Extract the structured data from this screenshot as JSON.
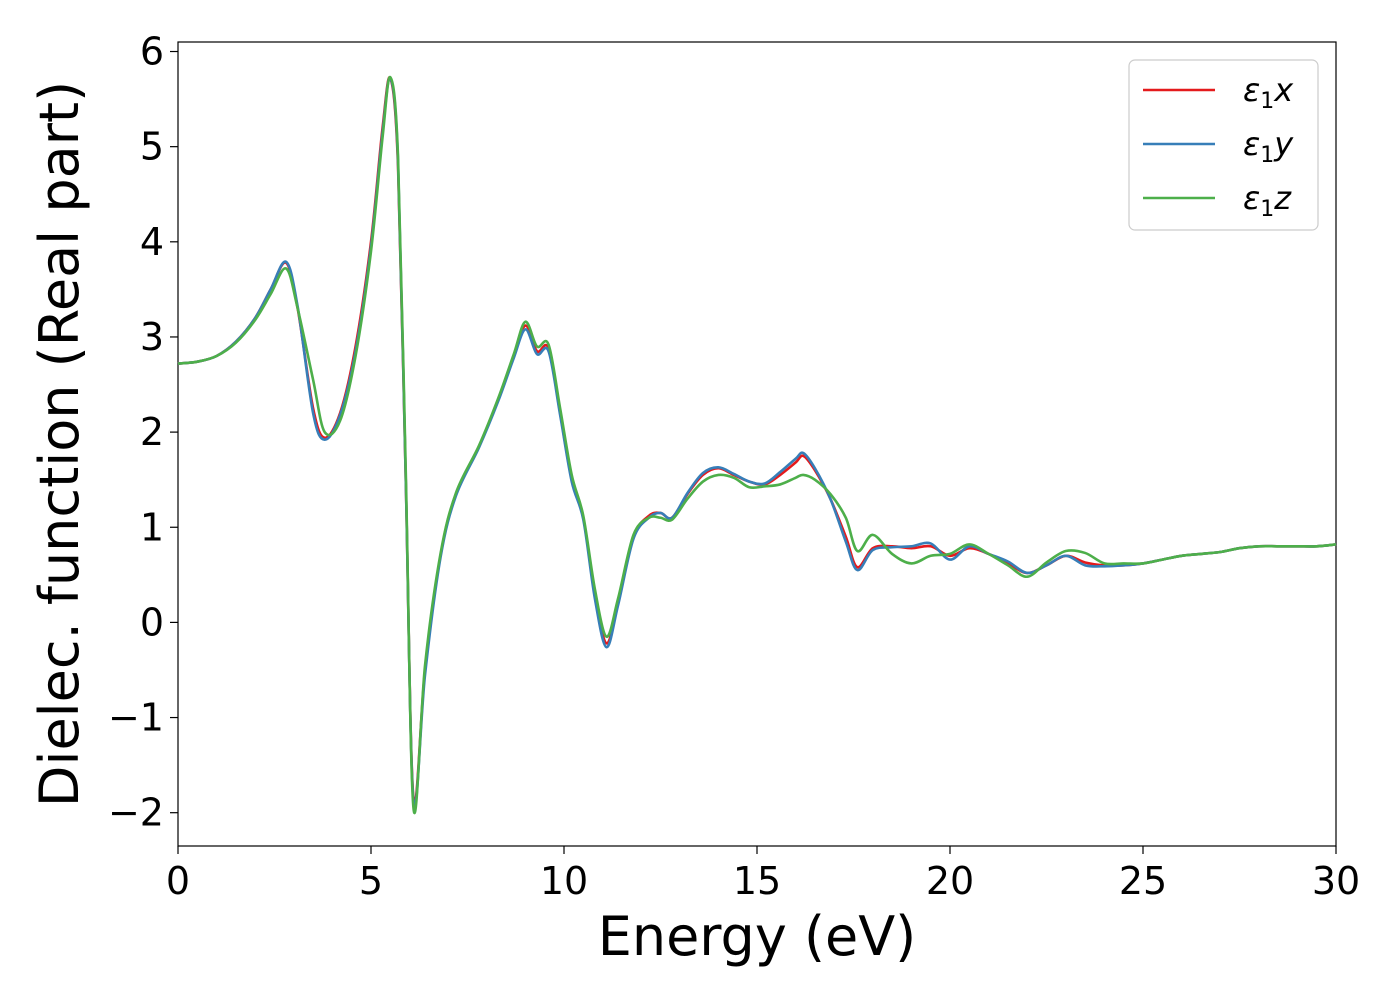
{
  "chart_data": {
    "type": "line",
    "title": "",
    "xlabel": "Energy (eV)",
    "ylabel": "Dielec. function (Real part)",
    "xlim": [
      0,
      30
    ],
    "ylim": [
      -2.35,
      6.1
    ],
    "xticks": [
      0,
      5,
      10,
      15,
      20,
      25,
      30
    ],
    "yticks": [
      -2,
      -1,
      0,
      1,
      2,
      3,
      4,
      5,
      6
    ],
    "xtick_labels": [
      "0",
      "5",
      "10",
      "15",
      "20",
      "25",
      "30"
    ],
    "ytick_labels": [
      "−2",
      "−1",
      "0",
      "1",
      "2",
      "3",
      "4",
      "5",
      "6"
    ],
    "grid": false,
    "legend_position": "top-right",
    "series": [
      {
        "name": "ε1x",
        "label_main": "ε",
        "label_sub": "1",
        "label_axis": "x",
        "color": "#e41a1c",
        "x": [
          0,
          0.5,
          1.0,
          1.5,
          2.0,
          2.4,
          2.8,
          3.1,
          3.5,
          3.8,
          4.2,
          4.6,
          5.0,
          5.3,
          5.5,
          5.7,
          5.9,
          6.1,
          6.4,
          6.8,
          7.2,
          7.8,
          8.3,
          8.7,
          9.0,
          9.3,
          9.6,
          9.9,
          10.2,
          10.5,
          10.8,
          11.1,
          11.4,
          11.8,
          12.2,
          12.5,
          12.8,
          13.2,
          13.6,
          14.0,
          14.4,
          14.8,
          15.2,
          15.6,
          16.0,
          16.2,
          16.5,
          16.9,
          17.3,
          17.6,
          18.0,
          18.5,
          19.0,
          19.5,
          20.0,
          20.5,
          21.0,
          21.5,
          22.0,
          22.5,
          23.0,
          23.5,
          24.0,
          24.5,
          25.0,
          25.5,
          26.0,
          26.5,
          27.0,
          27.5,
          28.0,
          28.5,
          29.0,
          29.5,
          30.0
        ],
        "values": [
          2.72,
          2.74,
          2.8,
          2.95,
          3.2,
          3.5,
          3.78,
          3.3,
          2.25,
          1.94,
          2.2,
          2.9,
          4.0,
          5.2,
          5.72,
          4.8,
          1.5,
          -1.85,
          -0.5,
          0.7,
          1.35,
          1.85,
          2.35,
          2.8,
          3.12,
          2.85,
          2.88,
          2.2,
          1.5,
          1.1,
          0.3,
          -0.22,
          0.2,
          0.9,
          1.12,
          1.15,
          1.1,
          1.35,
          1.55,
          1.62,
          1.55,
          1.48,
          1.45,
          1.55,
          1.68,
          1.75,
          1.6,
          1.3,
          0.9,
          0.58,
          0.78,
          0.8,
          0.78,
          0.8,
          0.7,
          0.78,
          0.72,
          0.62,
          0.52,
          0.6,
          0.7,
          0.63,
          0.6,
          0.6,
          0.62,
          0.66,
          0.7,
          0.72,
          0.74,
          0.78,
          0.8,
          0.8,
          0.8,
          0.8,
          0.82
        ]
      },
      {
        "name": "ε1y",
        "label_main": "ε",
        "label_sub": "1",
        "label_axis": "y",
        "color": "#377eb8",
        "x": [
          0,
          0.5,
          1.0,
          1.5,
          2.0,
          2.4,
          2.8,
          3.1,
          3.5,
          3.8,
          4.2,
          4.6,
          5.0,
          5.3,
          5.5,
          5.7,
          5.9,
          6.1,
          6.4,
          6.8,
          7.2,
          7.8,
          8.3,
          8.7,
          9.0,
          9.3,
          9.6,
          9.9,
          10.2,
          10.5,
          10.8,
          11.1,
          11.4,
          11.8,
          12.2,
          12.5,
          12.8,
          13.2,
          13.6,
          14.0,
          14.4,
          14.8,
          15.2,
          15.6,
          16.0,
          16.2,
          16.5,
          16.9,
          17.3,
          17.6,
          18.0,
          18.5,
          19.0,
          19.5,
          20.0,
          20.5,
          21.0,
          21.5,
          22.0,
          22.5,
          23.0,
          23.5,
          24.0,
          24.5,
          25.0,
          25.5,
          26.0,
          26.5,
          27.0,
          27.5,
          28.0,
          28.5,
          29.0,
          29.5,
          30.0
        ],
        "values": [
          2.72,
          2.74,
          2.8,
          2.95,
          3.2,
          3.5,
          3.79,
          3.32,
          2.2,
          1.92,
          2.18,
          2.85,
          3.95,
          5.15,
          5.72,
          4.85,
          1.5,
          -1.88,
          -0.55,
          0.68,
          1.33,
          1.84,
          2.33,
          2.78,
          3.08,
          2.82,
          2.85,
          2.18,
          1.48,
          1.08,
          0.25,
          -0.26,
          0.18,
          0.88,
          1.1,
          1.15,
          1.1,
          1.36,
          1.57,
          1.63,
          1.56,
          1.48,
          1.46,
          1.58,
          1.72,
          1.78,
          1.62,
          1.3,
          0.85,
          0.55,
          0.76,
          0.79,
          0.8,
          0.83,
          0.66,
          0.8,
          0.72,
          0.64,
          0.52,
          0.6,
          0.7,
          0.6,
          0.59,
          0.6,
          0.62,
          0.66,
          0.7,
          0.72,
          0.74,
          0.78,
          0.8,
          0.8,
          0.8,
          0.8,
          0.82
        ]
      },
      {
        "name": "ε1z",
        "label_main": "ε",
        "label_sub": "1",
        "label_axis": "z",
        "color": "#4daf4a",
        "x": [
          0,
          0.5,
          1.0,
          1.5,
          2.0,
          2.4,
          2.8,
          3.1,
          3.5,
          3.8,
          4.2,
          4.6,
          5.0,
          5.3,
          5.5,
          5.7,
          5.9,
          6.1,
          6.4,
          6.8,
          7.2,
          7.8,
          8.3,
          8.7,
          9.0,
          9.3,
          9.6,
          9.9,
          10.2,
          10.5,
          10.8,
          11.1,
          11.4,
          11.8,
          12.2,
          12.5,
          12.8,
          13.2,
          13.6,
          14.0,
          14.4,
          14.8,
          15.2,
          15.6,
          16.0,
          16.2,
          16.5,
          16.9,
          17.3,
          17.6,
          18.0,
          18.5,
          19.0,
          19.5,
          20.0,
          20.5,
          21.0,
          21.5,
          22.0,
          22.5,
          23.0,
          23.5,
          24.0,
          24.5,
          25.0,
          25.5,
          26.0,
          26.5,
          27.0,
          27.5,
          28.0,
          28.5,
          29.0,
          29.5,
          30.0
        ],
        "values": [
          2.72,
          2.74,
          2.8,
          2.94,
          3.18,
          3.45,
          3.72,
          3.3,
          2.55,
          2.0,
          2.12,
          2.8,
          3.9,
          5.1,
          5.73,
          4.9,
          1.6,
          -1.95,
          -0.45,
          0.72,
          1.36,
          1.86,
          2.36,
          2.82,
          3.16,
          2.9,
          2.92,
          2.25,
          1.55,
          1.12,
          0.35,
          -0.15,
          0.25,
          0.92,
          1.1,
          1.1,
          1.08,
          1.3,
          1.48,
          1.55,
          1.52,
          1.42,
          1.43,
          1.45,
          1.52,
          1.55,
          1.5,
          1.35,
          1.1,
          0.75,
          0.92,
          0.72,
          0.62,
          0.7,
          0.72,
          0.82,
          0.72,
          0.6,
          0.48,
          0.63,
          0.75,
          0.73,
          0.62,
          0.62,
          0.62,
          0.66,
          0.7,
          0.72,
          0.74,
          0.78,
          0.8,
          0.8,
          0.8,
          0.8,
          0.82
        ]
      }
    ]
  }
}
